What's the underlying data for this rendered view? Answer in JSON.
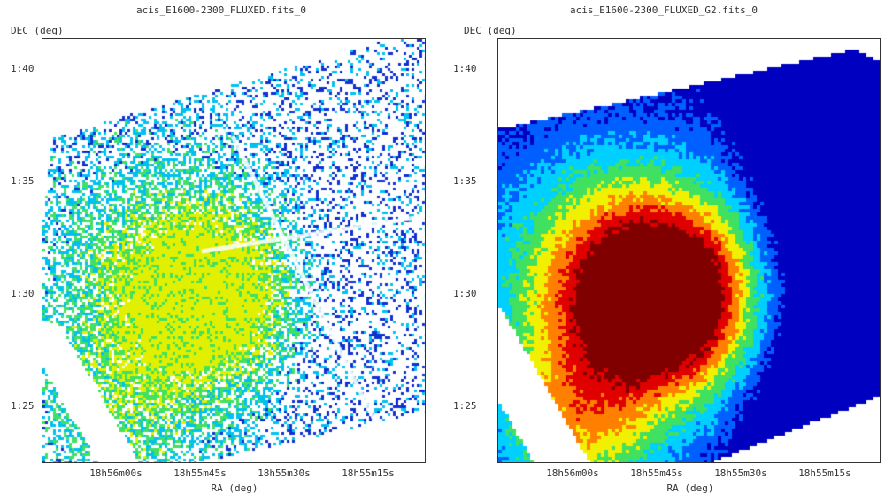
{
  "chart_data": [
    {
      "type": "heatmap",
      "title": "acis_E1600-2300_FLUXED.fits_0",
      "xlabel": "RA (deg)",
      "ylabel": "DEC (deg)",
      "x_ticks": [
        "18h56m00s",
        "18h55m45s",
        "18h55m30s",
        "18h55m15s"
      ],
      "y_ticks": [
        "1:40",
        "1:35",
        "1:30",
        "1:25"
      ],
      "style": "sparse",
      "colormap": [
        "#ffffff",
        "#1030d0",
        "#00c0f0",
        "#40e060",
        "#e0f000"
      ]
    },
    {
      "type": "heatmap",
      "title": "acis_E1600-2300_FLUXED_G2.fits_0",
      "xlabel": "RA (deg)",
      "ylabel": "DEC (deg)",
      "x_ticks": [
        "18h56m00s",
        "18h55m45s",
        "18h55m30s",
        "18h55m15s"
      ],
      "y_ticks": [
        "1:40",
        "1:35",
        "1:30",
        "1:25"
      ],
      "style": "smoothed",
      "colormap": [
        "#0000c0",
        "#0060ff",
        "#00d0ff",
        "#40e060",
        "#f0f000",
        "#ff8000",
        "#e00000",
        "#800000"
      ]
    }
  ]
}
